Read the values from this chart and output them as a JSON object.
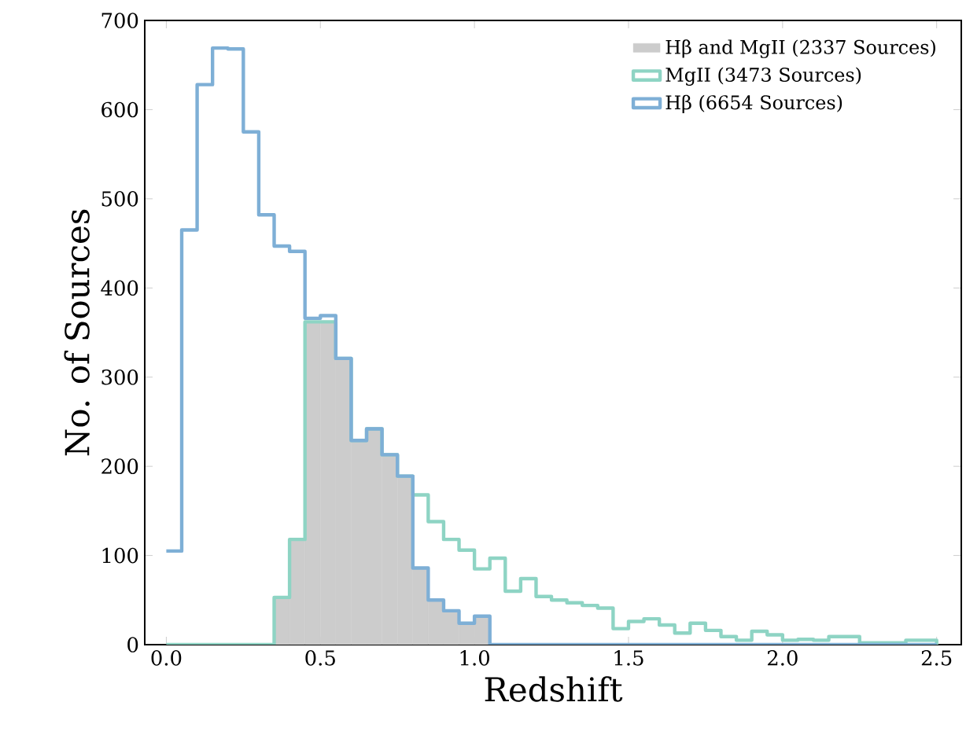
{
  "chart_data": {
    "type": "histogram",
    "xlabel": "Redshift",
    "ylabel": "No. of Sources",
    "bins": [
      0,
      0.05,
      0.1,
      0.15,
      0.2,
      0.25,
      0.3,
      0.35,
      0.4,
      0.45,
      0.5,
      0.55,
      0.6,
      0.65,
      0.7,
      0.75,
      0.8,
      0.85,
      0.9,
      0.95,
      1.0,
      1.05,
      1.1,
      1.15,
      1.2,
      1.25,
      1.3,
      1.35,
      1.4,
      1.45,
      1.5,
      1.55,
      1.6,
      1.65,
      1.7,
      1.75,
      1.8,
      1.85,
      1.9,
      1.95,
      2.0,
      2.05,
      2.1,
      2.15,
      2.2,
      2.25,
      2.3,
      2.35,
      2.4,
      2.45,
      2.5
    ],
    "series": [
      {
        "name": "Hβ and MgII (2337 Sources)",
        "color": "#cccccc",
        "values": [
          0,
          0,
          0,
          0,
          0,
          0,
          0,
          53,
          118,
          362,
          362,
          321,
          229,
          242,
          213,
          189,
          86,
          50,
          38,
          24,
          32,
          0,
          0,
          0,
          0,
          0,
          0,
          0,
          0,
          0,
          0,
          0,
          0,
          0,
          0,
          0,
          0,
          0,
          0,
          0,
          0,
          0,
          0,
          0,
          0,
          0,
          0,
          0,
          0,
          0
        ]
      },
      {
        "name": "MgII (3473 Sources)",
        "color": "#8ed4c4",
        "type": "step",
        "x": [
          0,
          0.05,
          0.1,
          0.15,
          0.2,
          0.25,
          0.3,
          0.35,
          0.4,
          0.45,
          0.5,
          0.55,
          0.6,
          0.65,
          0.7,
          0.75,
          0.8,
          0.85,
          0.9,
          0.95,
          1.0,
          1.05,
          1.1,
          1.15,
          1.2,
          1.25,
          1.3,
          1.35,
          1.4,
          1.45,
          1.5,
          1.55,
          1.6,
          1.65,
          1.7,
          1.75,
          1.8,
          1.85,
          1.9,
          1.95,
          2.0,
          2.05,
          2.1,
          2.15,
          2.2,
          2.25,
          2.3,
          2.35,
          2.4,
          2.45,
          2.5
        ],
        "values": [
          0,
          0,
          0,
          0,
          0,
          0,
          0,
          53,
          118,
          362,
          362,
          321,
          229,
          242,
          213,
          189,
          168,
          138,
          118,
          106,
          85,
          97,
          60,
          74,
          54,
          50,
          47,
          44,
          41,
          18,
          26,
          29,
          22,
          13,
          24,
          16,
          9,
          5,
          15,
          11,
          5,
          6,
          5,
          9,
          9,
          2,
          2,
          2,
          5,
          5,
          0
        ]
      },
      {
        "name": "Hβ (6654 Sources)",
        "color": "#7eafd6",
        "type": "step",
        "x": [
          0,
          0.05,
          0.1,
          0.15,
          0.2,
          0.25,
          0.3,
          0.35,
          0.4,
          0.45,
          0.5,
          0.55,
          0.6,
          0.65,
          0.7,
          0.75,
          0.8,
          0.85,
          0.9,
          0.95,
          1.0,
          1.05,
          1.1,
          1.15,
          1.2,
          1.25,
          1.3,
          1.35,
          1.4,
          1.45,
          1.5,
          1.55,
          1.6,
          1.65,
          1.7,
          1.75,
          1.8,
          1.85,
          1.9,
          1.95,
          2.0,
          2.05,
          2.1,
          2.15,
          2.2,
          2.25,
          2.3,
          2.35,
          2.4,
          2.45,
          2.5
        ],
        "values": [
          105,
          465,
          628,
          669,
          668,
          575,
          482,
          447,
          441,
          366,
          369,
          321,
          229,
          242,
          213,
          189,
          86,
          50,
          38,
          24,
          32,
          0,
          0,
          0,
          0,
          0,
          0,
          0,
          0,
          0,
          0,
          0,
          0,
          0,
          0,
          0,
          0,
          0,
          0,
          0,
          0,
          0,
          0,
          0,
          0,
          0,
          0,
          0,
          0,
          0,
          0
        ]
      }
    ],
    "xlim": [
      -0.07,
      2.58
    ],
    "ylim": [
      0,
      700
    ],
    "xticks": [
      {
        "value": 0,
        "label": "0.0"
      },
      {
        "value": 0.5,
        "label": "0.5"
      },
      {
        "value": 1,
        "label": "1.0"
      },
      {
        "value": 1.5,
        "label": "1.5"
      },
      {
        "value": 2,
        "label": "2.0"
      },
      {
        "value": 2.5,
        "label": "2.5"
      }
    ],
    "yticks": [
      0,
      100,
      200,
      300,
      400,
      500,
      600,
      700
    ],
    "legend": "top right",
    "grid": false
  }
}
